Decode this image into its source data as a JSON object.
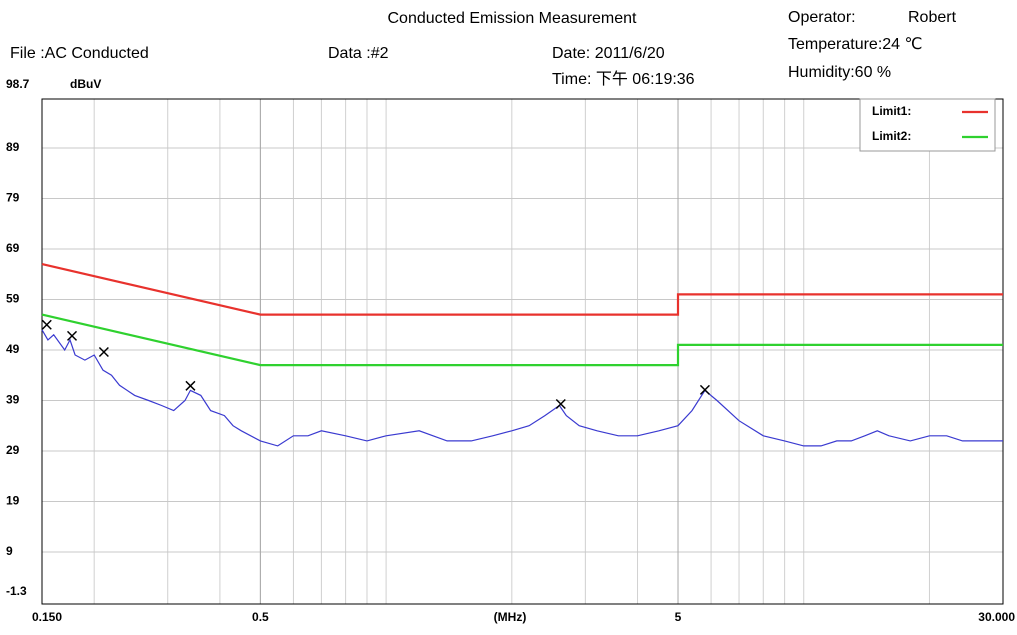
{
  "chart_data": {
    "type": "line",
    "title": "Conducted Emission Measurement",
    "info": [
      "File :AC Conducted",
      "Data :#2",
      "Date: 2011/6/20",
      "Time: 下午 06:19:36",
      "Operator:",
      "Robert",
      "Temperature:24 ℃",
      "Humidity:60 %"
    ],
    "y_unit": "dBuV",
    "x_label": "(MHz)",
    "log_x": true,
    "grid": true,
    "legend": "upper right",
    "xlim": [
      0.15,
      30
    ],
    "ylim": [
      -1.3,
      98.7
    ],
    "xticks": [
      {
        "value": 0.15,
        "label": "0.150"
      },
      0.5,
      5,
      {
        "value": 30,
        "label": "30.000"
      }
    ],
    "yticks": [
      -1.3,
      9,
      19,
      29,
      39,
      49,
      59,
      69,
      79,
      89,
      98.7
    ],
    "series": [
      {
        "name": "Limit1:",
        "color": "#e8322d",
        "x": [
          0.15,
          0.5,
          5,
          5,
          30
        ],
        "values": [
          66,
          56,
          56,
          60,
          60
        ]
      },
      {
        "name": "Limit2:",
        "color": "#2fd12f",
        "x": [
          0.15,
          0.5,
          5,
          5,
          30
        ],
        "values": [
          56,
          46,
          46,
          50,
          50
        ]
      },
      {
        "color": "#3a3ad0",
        "x": [
          0.15,
          0.155,
          0.16,
          0.17,
          0.175,
          0.18,
          0.19,
          0.2,
          0.21,
          0.22,
          0.23,
          0.25,
          0.27,
          0.29,
          0.31,
          0.33,
          0.34,
          0.36,
          0.38,
          0.41,
          0.43,
          0.45,
          0.5,
          0.55,
          0.6,
          0.65,
          0.7,
          0.8,
          0.9,
          1.0,
          1.2,
          1.4,
          1.6,
          1.8,
          2.0,
          2.2,
          2.4,
          2.6,
          2.7,
          2.9,
          3.2,
          3.6,
          4.0,
          4.5,
          5.0,
          5.4,
          5.8,
          6.2,
          7.0,
          8.0,
          9,
          10,
          11,
          12,
          13,
          14,
          15,
          16,
          18,
          20,
          22,
          24,
          26,
          28,
          30
        ],
        "values": [
          53,
          51,
          52,
          49,
          51,
          48,
          47,
          48,
          45,
          44,
          42,
          40,
          39,
          38,
          37,
          39,
          41,
          40,
          37,
          36,
          34,
          33,
          31,
          30,
          32,
          32,
          33,
          32,
          31,
          32,
          33,
          31,
          31,
          32,
          33,
          34,
          36,
          38,
          36,
          34,
          33,
          32,
          32,
          33,
          34,
          37,
          41,
          39,
          35,
          32,
          31,
          30,
          30,
          31,
          31,
          32,
          33,
          32,
          31,
          32,
          32,
          31,
          31,
          31,
          31
        ]
      }
    ],
    "markers": {
      "x": [
        0.154,
        0.177,
        0.211,
        0.34,
        2.62,
        5.8
      ],
      "values": [
        54,
        51.8,
        48.6,
        41.9,
        38.3,
        41.1
      ]
    }
  }
}
